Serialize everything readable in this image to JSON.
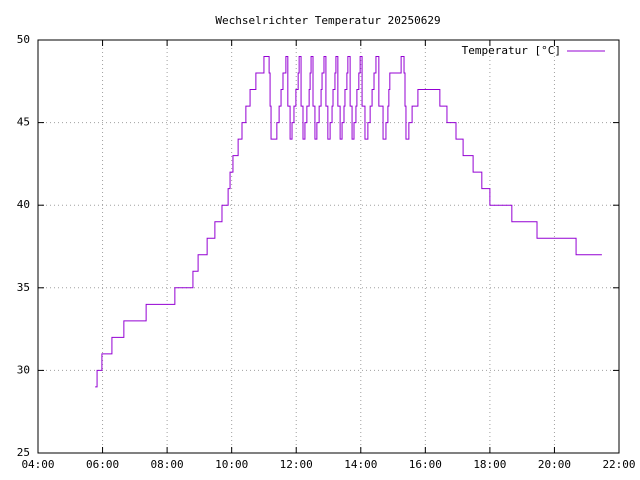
{
  "chart_data": {
    "type": "line",
    "title": "Wechselrichter Temperatur 20250629",
    "steps": true,
    "grid": true,
    "legend": "top-right",
    "x": [
      5.77,
      5.83,
      5.98,
      6.29,
      6.66,
      7.35,
      8.24,
      8.8,
      8.96,
      9.24,
      9.48,
      9.7,
      9.89,
      9.95,
      10.04,
      10.2,
      10.32,
      10.44,
      10.57,
      10.75,
      11.0,
      11.16,
      11.19,
      11.22,
      11.4,
      11.47,
      11.53,
      11.59,
      11.68,
      11.74,
      11.81,
      11.87,
      11.93,
      11.99,
      12.06,
      12.09,
      12.15,
      12.21,
      12.27,
      12.33,
      12.4,
      12.43,
      12.46,
      12.52,
      12.58,
      12.64,
      12.71,
      12.77,
      12.8,
      12.86,
      12.92,
      12.98,
      13.05,
      13.11,
      13.14,
      13.2,
      13.23,
      13.29,
      13.36,
      13.42,
      13.48,
      13.51,
      13.57,
      13.6,
      13.67,
      13.73,
      13.79,
      13.85,
      13.88,
      13.94,
      13.98,
      14.04,
      14.13,
      14.22,
      14.29,
      14.35,
      14.41,
      14.47,
      14.56,
      14.69,
      14.78,
      14.84,
      14.87,
      14.9,
      15.25,
      15.34,
      15.37,
      15.4,
      15.49,
      15.59,
      15.77,
      16.45,
      16.67,
      16.95,
      17.17,
      17.48,
      17.75,
      18.0,
      18.68,
      19.46,
      20.67,
      21.47
    ],
    "series": [
      {
        "name": "Temperatur [°C]",
        "color": "#9400d3",
        "values": [
          29,
          30,
          31,
          32,
          33,
          34,
          35,
          36,
          37,
          38,
          39,
          40,
          41,
          42,
          43,
          44,
          45,
          46,
          47,
          48,
          49,
          48,
          46,
          44,
          45,
          46,
          47,
          48,
          49,
          46,
          44,
          45,
          46,
          47,
          48,
          49,
          46,
          44,
          45,
          46,
          47,
          48,
          49,
          46,
          44,
          45,
          46,
          47,
          48,
          49,
          46,
          44,
          45,
          46,
          47,
          48,
          49,
          46,
          44,
          45,
          46,
          47,
          48,
          49,
          46,
          44,
          45,
          46,
          47,
          48,
          49,
          46,
          44,
          45,
          46,
          47,
          48,
          49,
          46,
          44,
          45,
          46,
          47,
          48,
          49,
          48,
          46,
          44,
          45,
          46,
          47,
          46,
          45,
          44,
          43,
          42,
          41,
          40,
          39,
          38,
          37,
          37
        ]
      }
    ],
    "xlim": [
      4,
      22
    ],
    "xticks": [
      {
        "value": 4,
        "label": "04:00"
      },
      {
        "value": 6,
        "label": "06:00"
      },
      {
        "value": 8,
        "label": "08:00"
      },
      {
        "value": 10,
        "label": "10:00"
      },
      {
        "value": 12,
        "label": "12:00"
      },
      {
        "value": 14,
        "label": "14:00"
      },
      {
        "value": 16,
        "label": "16:00"
      },
      {
        "value": 18,
        "label": "18:00"
      },
      {
        "value": 20,
        "label": "20:00"
      },
      {
        "value": 22,
        "label": "22:00"
      }
    ],
    "ylim": [
      25,
      50
    ],
    "yticks": [
      25,
      30,
      35,
      40,
      45,
      50
    ]
  }
}
